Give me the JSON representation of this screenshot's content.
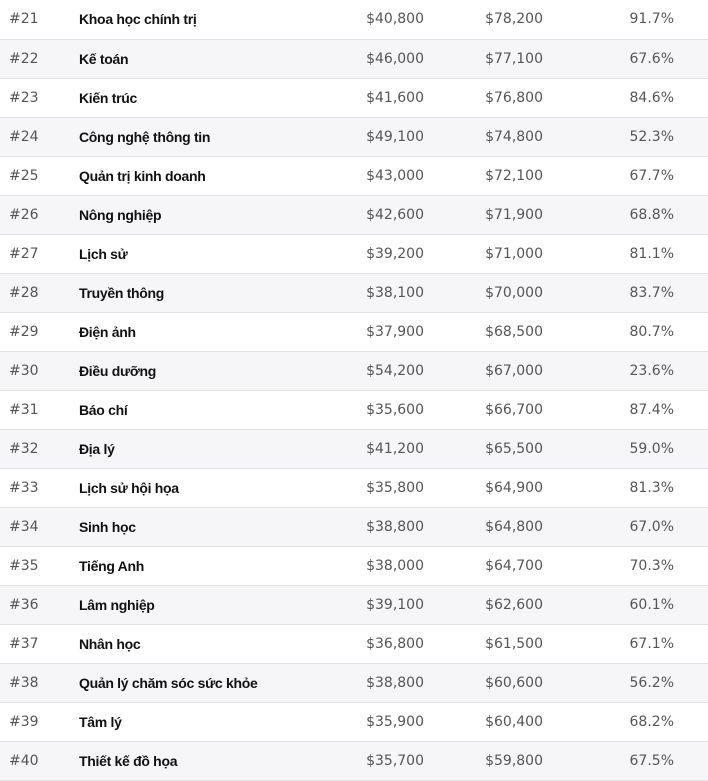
{
  "table": {
    "rows": [
      [
        "#21",
        "Khoa học chính trị",
        "$40,800",
        "$78,200",
        "91.7%"
      ],
      [
        "#22",
        "Kế toán",
        "$46,000",
        "$77,100",
        "67.6%"
      ],
      [
        "#23",
        "Kiến trúc",
        "$41,600",
        "$76,800",
        "84.6%"
      ],
      [
        "#24",
        "Công nghệ thông tin",
        "$49,100",
        "$74,800",
        "52.3%"
      ],
      [
        "#25",
        "Quản trị kinh doanh",
        "$43,000",
        "$72,100",
        "67.7%"
      ],
      [
        "#26",
        "Nông nghiệp",
        "$42,600",
        "$71,900",
        "68.8%"
      ],
      [
        "#27",
        "Lịch sử",
        "$39,200",
        "$71,000",
        "81.1%"
      ],
      [
        "#28",
        "Truyền thông",
        "$38,100",
        "$70,000",
        "83.7%"
      ],
      [
        "#29",
        "Điện ảnh",
        "$37,900",
        "$68,500",
        "80.7%"
      ],
      [
        "#30",
        "Điều dưỡng",
        "$54,200",
        "$67,000",
        "23.6%"
      ],
      [
        "#31",
        "Báo chí",
        "$35,600",
        "$66,700",
        "87.4%"
      ],
      [
        "#32",
        "Địa lý",
        "$41,200",
        "$65,500",
        "59.0%"
      ],
      [
        "#33",
        "Lịch sử hội họa",
        "$35,800",
        "$64,900",
        "81.3%"
      ],
      [
        "#34",
        "Sinh học",
        "$38,800",
        "$64,800",
        "67.0%"
      ],
      [
        "#35",
        "Tiếng Anh",
        "$38,000",
        "$64,700",
        "70.3%"
      ],
      [
        "#36",
        "Lâm nghiệp",
        "$39,100",
        "$62,600",
        "60.1%"
      ],
      [
        "#37",
        "Nhân học",
        "$36,800",
        "$61,500",
        "67.1%"
      ],
      [
        "#38",
        "Quản lý chăm sóc sức khỏe",
        "$38,800",
        "$60,600",
        "56.2%"
      ],
      [
        "#39",
        "Tâm lý",
        "$35,900",
        "$60,400",
        "68.2%"
      ],
      [
        "#40",
        "Thiết kế đồ họa",
        "$35,700",
        "$59,800",
        "67.5%"
      ]
    ]
  }
}
